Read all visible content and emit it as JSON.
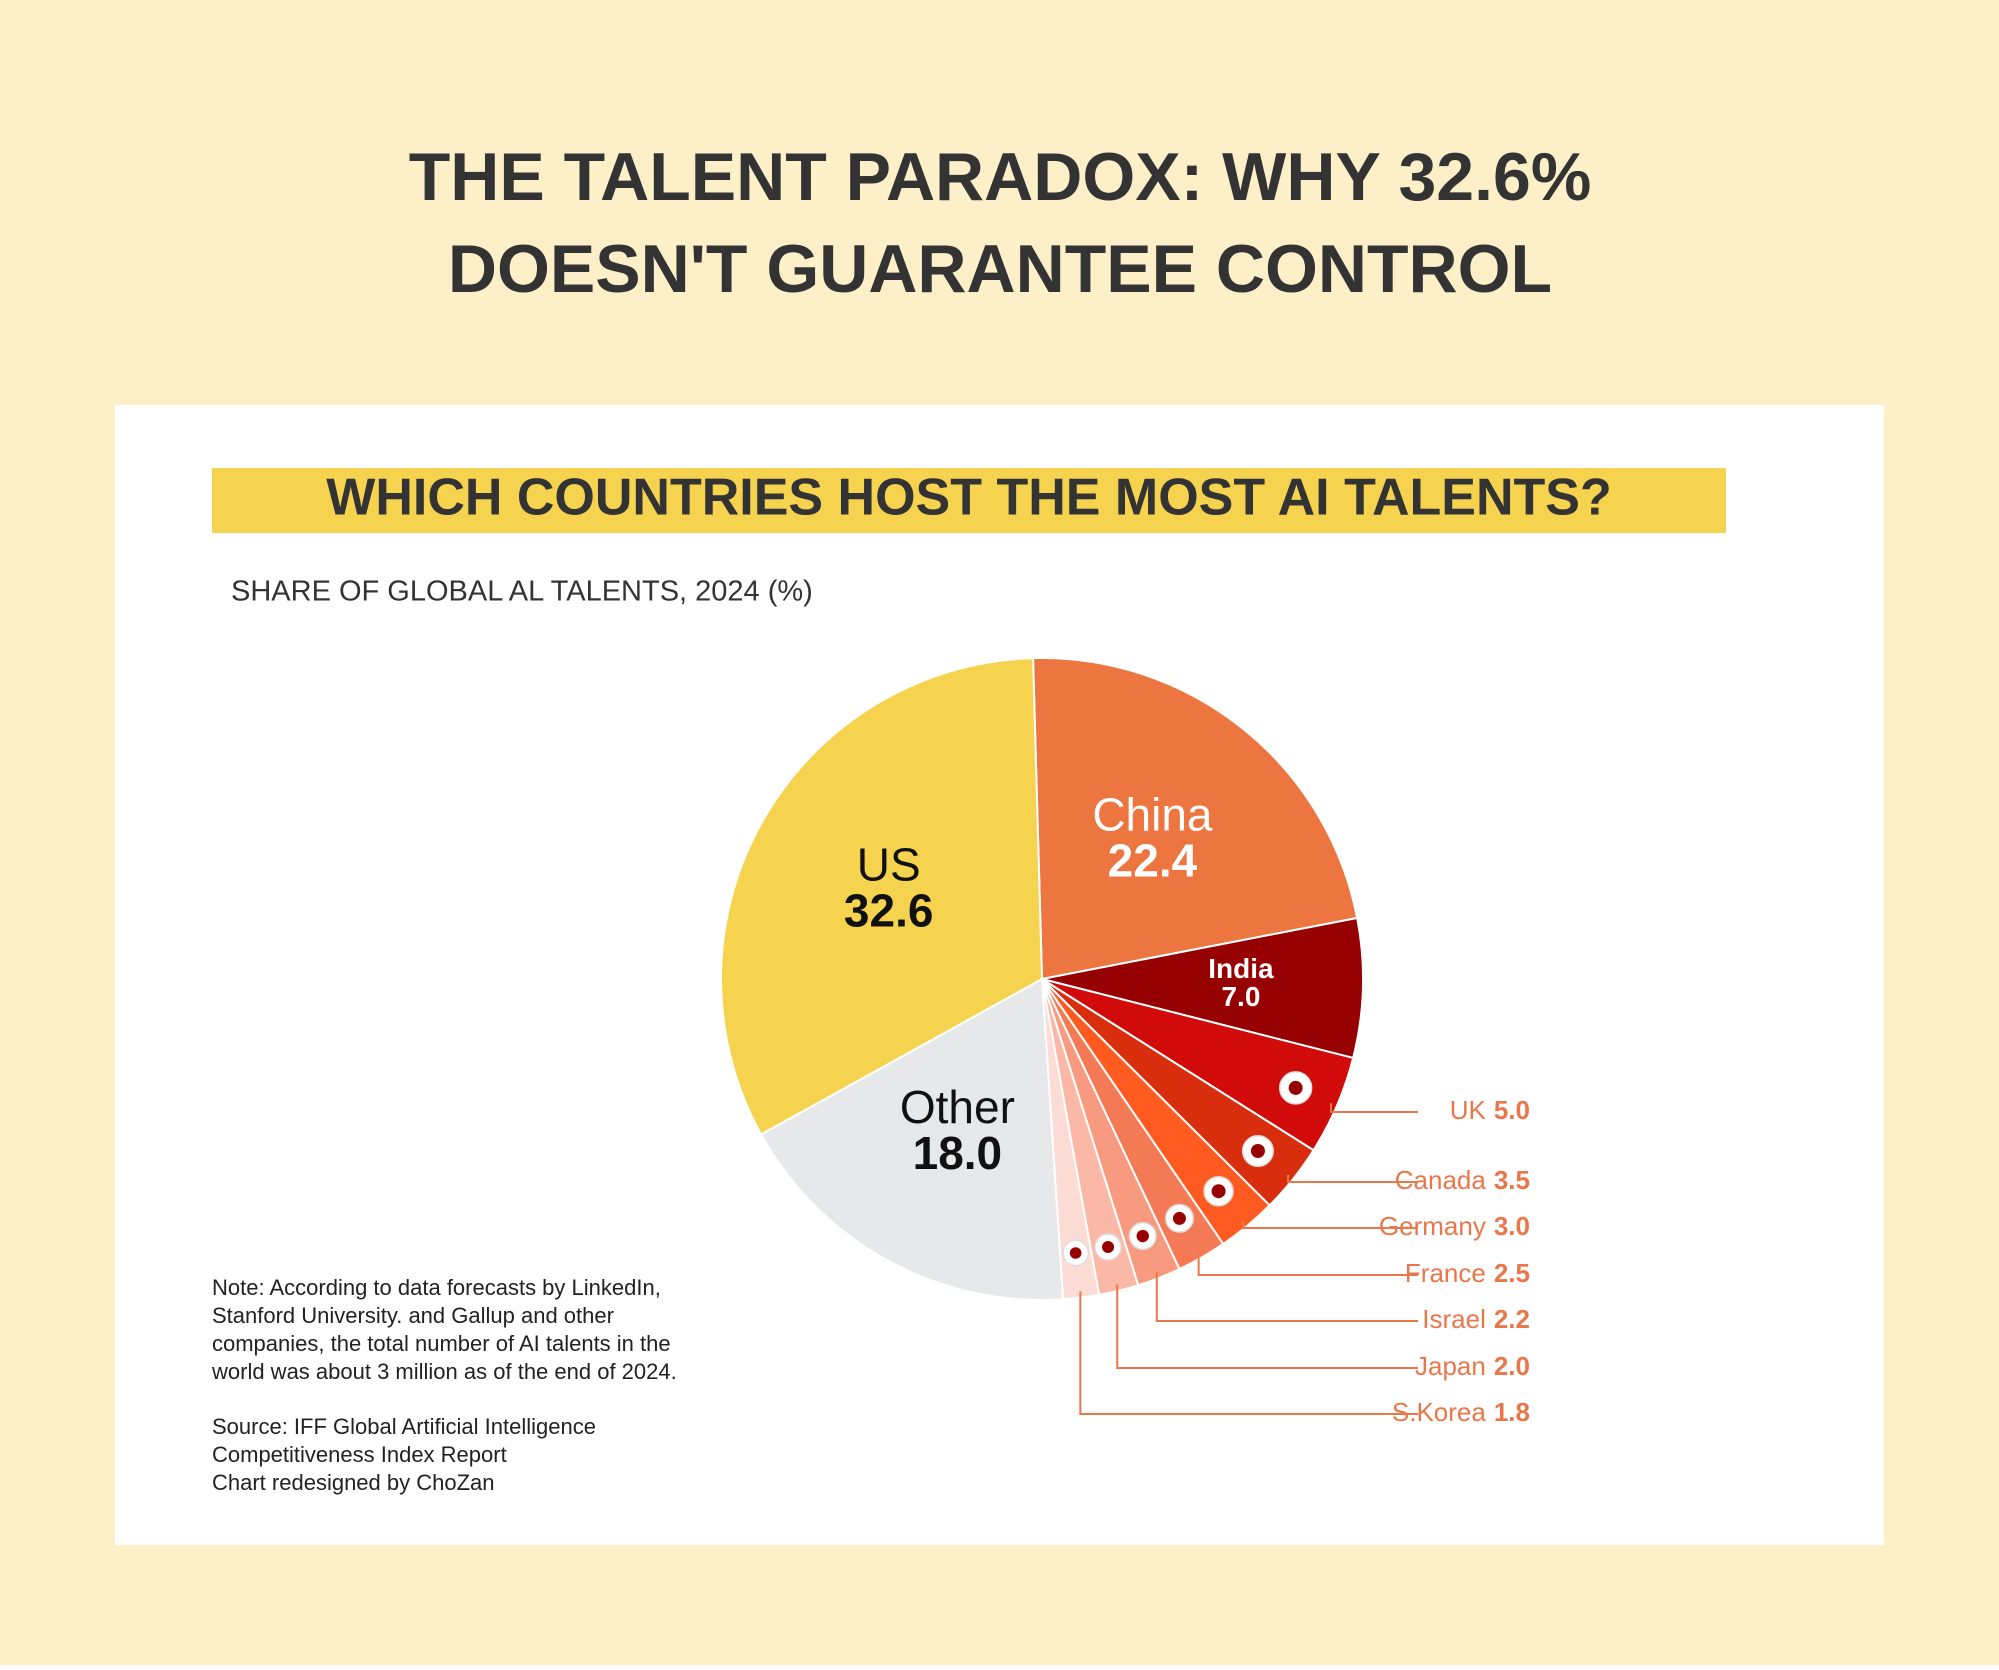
{
  "header": {
    "title_lines": [
      "THE TALENT PARADOX: WHY 32.6%",
      "DOESN'T GUARANTEE CONTROL"
    ]
  },
  "chart_data": {
    "type": "pie",
    "title": "WHICH COUNTRIES HOST THE MOST AI TALENTS?",
    "subtitle": "SHARE OF GLOBAL AL TALENTS, 2024 (%)",
    "categories": [
      "China",
      "India",
      "UK",
      "Canada",
      "Germany",
      "France",
      "Israel",
      "Japan",
      "S.Korea",
      "Other",
      "US"
    ],
    "values": [
      22.4,
      7.0,
      5.0,
      3.5,
      3.0,
      2.5,
      2.2,
      2.0,
      1.8,
      18.0,
      32.6
    ],
    "value_labels": [
      "22.4",
      "7.0",
      "5.0",
      "3.5",
      "3.0",
      "2.5",
      "2.2",
      "2.0",
      "1.8",
      "18.0",
      "32.6"
    ],
    "colors": [
      "#ec7540",
      "#960000",
      "#d10a0a",
      "#d92e0e",
      "#ff5a1f",
      "#f47a56",
      "#f89a80",
      "#fbb8a6",
      "#fcdcd4",
      "#e7e8ea",
      "#f6d34f"
    ],
    "note_lines": [
      "Note: According to data forecasts by LinkedIn,",
      "Stanford University. and Gallup and other",
      "companies, the total number of AI talents in the",
      "world was about 3 million as of the end of 2024."
    ],
    "source_lines": [
      "Source: IFF Global Artificial Intelligence",
      "Competitiveness Index Report",
      "Chart redesigned by ChoZan"
    ]
  }
}
